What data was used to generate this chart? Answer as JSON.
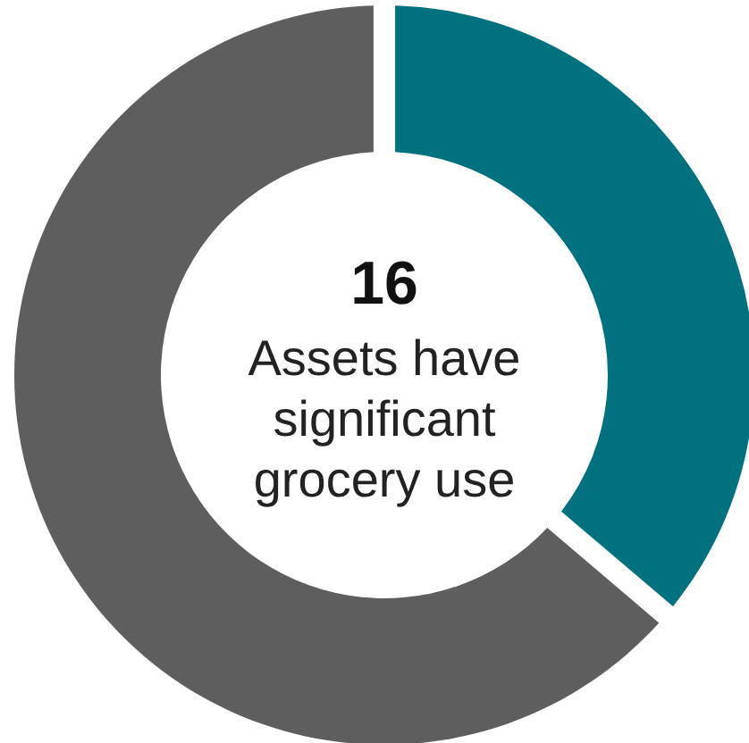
{
  "chart_data": {
    "type": "donut",
    "categories": [
      null,
      null
    ],
    "values": [
      36,
      64
    ],
    "colors": [
      "#00717f",
      "#5e5e5f"
    ],
    "annotations": [
      "16",
      "Assets have significant grocery use"
    ]
  }
}
